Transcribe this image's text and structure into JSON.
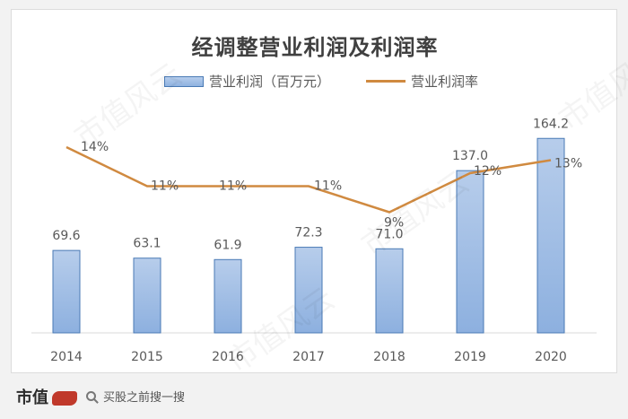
{
  "chart_data": {
    "type": "bar",
    "title": "经调整营业利润及利润率",
    "categories": [
      "2014",
      "2015",
      "2016",
      "2017",
      "2018",
      "2019",
      "2020"
    ],
    "series": [
      {
        "name": "营业利润（百万元）",
        "type": "bar",
        "values": [
          69.6,
          63.1,
          61.9,
          72.3,
          71.0,
          137.0,
          164.2
        ],
        "labels": [
          "69.6",
          "63.1",
          "61.9",
          "72.3",
          "71.0",
          "137.0",
          "164.2"
        ],
        "color": "#9dbde6"
      },
      {
        "name": "营业利润率",
        "type": "line",
        "values": [
          14,
          11,
          11,
          11,
          9,
          12,
          13
        ],
        "labels": [
          "14%",
          "11%",
          "11%",
          "11%",
          "9%",
          "12%",
          "13%"
        ],
        "color": "#d08a40"
      }
    ],
    "grid": false,
    "legend": "top-center"
  },
  "footer": {
    "brand": "市值",
    "search_text": "买股之前搜一搜"
  },
  "watermark": "市值风云"
}
